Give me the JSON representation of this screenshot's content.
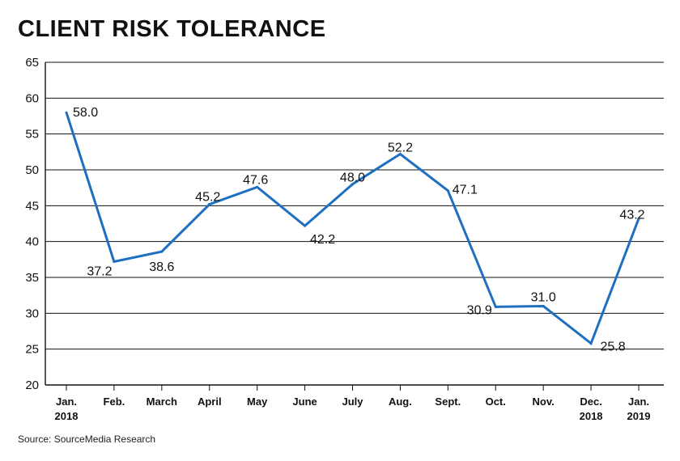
{
  "chart_data": {
    "type": "line",
    "title": "CLIENT RISK TOLERANCE",
    "source": "Source: SourceMedia Research",
    "xlabel": "",
    "ylabel": "",
    "ylim": [
      20,
      65
    ],
    "yticks": [
      20,
      25,
      30,
      35,
      40,
      45,
      50,
      55,
      60,
      65
    ],
    "grid": true,
    "color": "#1f6fc0",
    "categories": [
      [
        "Jan.",
        "2018"
      ],
      [
        "Feb."
      ],
      [
        "March"
      ],
      [
        "April"
      ],
      [
        "May"
      ],
      [
        "June"
      ],
      [
        "July"
      ],
      [
        "Aug."
      ],
      [
        "Sept."
      ],
      [
        "Oct."
      ],
      [
        "Nov."
      ],
      [
        "Dec.",
        "2018"
      ],
      [
        "Jan.",
        "2019"
      ]
    ],
    "values": [
      58.0,
      37.2,
      38.6,
      45.2,
      47.6,
      42.2,
      48.0,
      52.2,
      47.1,
      30.9,
      31.0,
      25.8,
      43.2
    ],
    "labels": [
      "58.0",
      "37.2",
      "38.6",
      "45.2",
      "47.6",
      "42.2",
      "48.0",
      "52.2",
      "47.1",
      "30.9",
      "31.0",
      "25.8",
      "43.2"
    ]
  }
}
